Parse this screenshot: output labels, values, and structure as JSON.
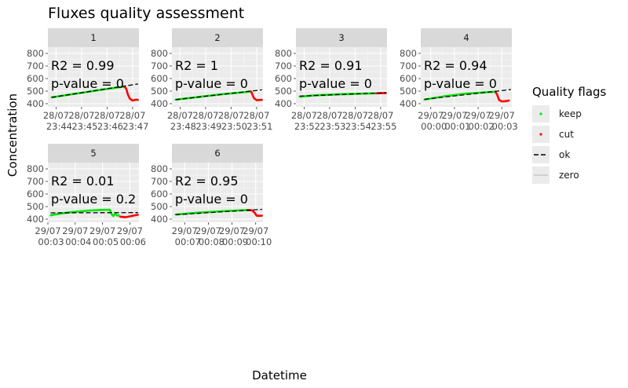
{
  "chart_data": {
    "type": "scatter",
    "title": "Fluxes quality assessment",
    "xlabel": "Datetime",
    "ylabel": "Concentration",
    "ylim": [
      375,
      850
    ],
    "y_ticks": [
      400,
      500,
      600,
      700,
      800
    ],
    "y_tick_labels": [
      "400",
      "500",
      "600",
      "700",
      "800"
    ],
    "grid": true,
    "legend": {
      "title": "Quality flags",
      "position": "right",
      "entries": [
        {
          "label": "keep",
          "kind": "point",
          "color": "#00e600"
        },
        {
          "label": "cut",
          "kind": "point",
          "color": "#ff0000"
        },
        {
          "label": "ok",
          "kind": "line",
          "color": "#000000",
          "dash": "dashed"
        },
        {
          "label": "zero",
          "kind": "line",
          "color": "#c8c8c8",
          "dash": "solid"
        }
      ]
    },
    "colors": {
      "keep": "#00e600",
      "cut": "#ff0000",
      "ok": "#000000",
      "zero": "#c8c8c8"
    },
    "panels": [
      {
        "id": "1",
        "r2_text": "R2 = 0.99",
        "pvalue_text": "p-value = 0",
        "x_ticks": [
          {
            "line1": "28/07",
            "line2": "23:44"
          },
          {
            "line1": "28/07",
            "line2": "23:45"
          },
          {
            "line1": "28/07",
            "line2": "23:46"
          },
          {
            "line1": "28/07",
            "line2": "23:47"
          }
        ],
        "x_tick_pos": [
          0.09,
          0.37,
          0.65,
          0.93
        ],
        "keep": [
          [
            0.04,
            450
          ],
          [
            0.2,
            468
          ],
          [
            0.4,
            490
          ],
          [
            0.6,
            512
          ],
          [
            0.8,
            532
          ],
          [
            0.84,
            536
          ]
        ],
        "cut": [
          [
            0.84,
            536
          ],
          [
            0.86,
            520
          ],
          [
            0.88,
            470
          ],
          [
            0.9,
            440
          ],
          [
            0.93,
            425
          ],
          [
            0.97,
            432
          ],
          [
            0.99,
            430
          ]
        ],
        "fit": [
          [
            0.04,
            450
          ],
          [
            0.99,
            557
          ]
        ]
      },
      {
        "id": "2",
        "r2_text": "R2 = 1",
        "pvalue_text": "p-value = 0",
        "x_ticks": [
          {
            "line1": "28/07",
            "line2": "23:48"
          },
          {
            "line1": "28/07",
            "line2": "23:49"
          },
          {
            "line1": "28/07",
            "line2": "23:50"
          },
          {
            "line1": "28/07",
            "line2": "23:51"
          }
        ],
        "x_tick_pos": [
          0.09,
          0.37,
          0.65,
          0.93
        ],
        "keep": [
          [
            0.04,
            432
          ],
          [
            0.3,
            454
          ],
          [
            0.55,
            475
          ],
          [
            0.8,
            492
          ],
          [
            0.87,
            497
          ]
        ],
        "cut": [
          [
            0.87,
            497
          ],
          [
            0.88,
            480
          ],
          [
            0.9,
            445
          ],
          [
            0.93,
            428
          ],
          [
            0.97,
            430
          ],
          [
            0.99,
            431
          ]
        ],
        "fit": [
          [
            0.04,
            432
          ],
          [
            0.99,
            510
          ]
        ]
      },
      {
        "id": "3",
        "r2_text": "R2 = 0.91",
        "pvalue_text": "p-value = 0",
        "x_ticks": [
          {
            "line1": "28/07",
            "line2": "23:52"
          },
          {
            "line1": "28/07",
            "line2": "23:53"
          },
          {
            "line1": "28/07",
            "line2": "23:54"
          },
          {
            "line1": "28/07",
            "line2": "23:55"
          }
        ],
        "x_tick_pos": [
          0.09,
          0.37,
          0.65,
          0.93
        ],
        "keep": [
          [
            0.04,
            455
          ],
          [
            0.2,
            466
          ],
          [
            0.45,
            474
          ],
          [
            0.7,
            479
          ],
          [
            0.88,
            482
          ]
        ],
        "cut": [
          [
            0.88,
            482
          ],
          [
            0.92,
            483
          ],
          [
            0.96,
            485
          ],
          [
            0.99,
            484
          ]
        ],
        "fit": [
          [
            0.04,
            460
          ],
          [
            0.99,
            488
          ]
        ]
      },
      {
        "id": "4",
        "r2_text": "R2 = 0.94",
        "pvalue_text": "p-value = 0",
        "x_ticks": [
          {
            "line1": "29/07",
            "line2": "00:00"
          },
          {
            "line1": "29/07",
            "line2": "00:01"
          },
          {
            "line1": "29/07",
            "line2": "00:02"
          },
          {
            "line1": "29/07",
            "line2": "00:03"
          }
        ],
        "x_tick_pos": [
          0.11,
          0.37,
          0.63,
          0.89
        ],
        "keep": [
          [
            0.04,
            432
          ],
          [
            0.25,
            458
          ],
          [
            0.5,
            480
          ],
          [
            0.7,
            490
          ],
          [
            0.82,
            495
          ]
        ],
        "cut": [
          [
            0.82,
            495
          ],
          [
            0.84,
            470
          ],
          [
            0.86,
            430
          ],
          [
            0.89,
            418
          ],
          [
            0.93,
            420
          ],
          [
            0.97,
            425
          ]
        ],
        "fit": [
          [
            0.04,
            435
          ],
          [
            0.99,
            512
          ]
        ]
      },
      {
        "id": "5",
        "r2_text": "R2 = 0.01",
        "pvalue_text": "p-value = 0.2",
        "x_ticks": [
          {
            "line1": "29/07",
            "line2": "00:03"
          },
          {
            "line1": "29/07",
            "line2": "00:04"
          },
          {
            "line1": "29/07",
            "line2": "00:05"
          },
          {
            "line1": "29/07",
            "line2": "00:06"
          }
        ],
        "x_tick_pos": [
          0.0,
          0.3,
          0.6,
          0.9
        ],
        "keep": [
          [
            0.03,
            430
          ],
          [
            0.1,
            440
          ],
          [
            0.25,
            455
          ],
          [
            0.45,
            468
          ],
          [
            0.6,
            474
          ],
          [
            0.68,
            475
          ],
          [
            0.7,
            440
          ],
          [
            0.72,
            425
          ],
          [
            0.74,
            445
          ],
          [
            0.76,
            428
          ],
          [
            0.78,
            432
          ]
        ],
        "cut": [
          [
            0.79,
            420
          ],
          [
            0.85,
            415
          ],
          [
            0.92,
            425
          ],
          [
            0.99,
            435
          ]
        ],
        "fit": [
          [
            0.03,
            450
          ],
          [
            0.99,
            452
          ]
        ]
      },
      {
        "id": "6",
        "r2_text": "R2 = 0.95",
        "pvalue_text": "p-value = 0",
        "x_ticks": [
          {
            "line1": "29/07",
            "line2": "00:07"
          },
          {
            "line1": "29/07",
            "line2": "00:08"
          },
          {
            "line1": "29/07",
            "line2": "00:09"
          },
          {
            "line1": "29/07",
            "line2": "00:10"
          }
        ],
        "x_tick_pos": [
          0.14,
          0.4,
          0.66,
          0.92
        ],
        "keep": [
          [
            0.04,
            437
          ],
          [
            0.3,
            452
          ],
          [
            0.55,
            463
          ],
          [
            0.75,
            470
          ],
          [
            0.83,
            472
          ]
        ],
        "cut": [
          [
            0.83,
            472
          ],
          [
            0.88,
            470
          ],
          [
            0.91,
            450
          ],
          [
            0.93,
            428
          ],
          [
            0.96,
            426
          ],
          [
            0.99,
            428
          ]
        ],
        "fit": [
          [
            0.04,
            435
          ],
          [
            0.99,
            478
          ]
        ]
      }
    ]
  }
}
